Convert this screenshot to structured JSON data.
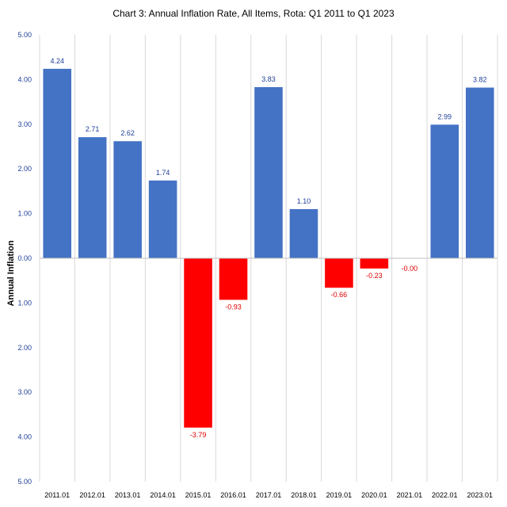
{
  "chart_data": {
    "type": "bar",
    "title": "Chart 3: Annual Inflation Rate, All Items, Rota: Q1 2011 to Q1 2023",
    "xlabel": "",
    "ylabel": "Annual Inflation",
    "categories": [
      "2011.01",
      "2012.01",
      "2013.01",
      "2014.01",
      "2015.01",
      "2016.01",
      "2017.01",
      "2018.01",
      "2019.01",
      "2020.01",
      "2021.01",
      "2022.01",
      "2023.01"
    ],
    "values": [
      4.24,
      2.71,
      2.62,
      1.74,
      -3.79,
      -0.93,
      3.83,
      1.1,
      -0.66,
      -0.23,
      -0.0,
      2.99,
      3.82
    ],
    "data_labels": [
      "4.24",
      "2.71",
      "2.62",
      "1.74",
      "-3.79",
      "-0.93",
      "3.83",
      "1.10",
      "-0.66",
      "-0.23",
      "-0.00",
      "2.99",
      "3.82"
    ],
    "ylim": [
      -5,
      5
    ],
    "yticks": [
      5,
      4,
      3,
      2,
      1,
      0,
      -1,
      -2,
      -3,
      -4,
      -5
    ],
    "ytick_labels": [
      "5.00",
      "4.00",
      "3.00",
      "2.00",
      "1.00",
      "0.00",
      "1.00",
      "2.00",
      "3.00",
      "4.00",
      "5.00"
    ],
    "grid": "vertical",
    "legend": "none",
    "colors": {
      "positive": "#4472C4",
      "negative": "#FF0000",
      "positive_label": "#1F3F99",
      "negative_label": "#E00000",
      "axis_label": "#1F3F99",
      "grid": "#D9D9D9"
    }
  }
}
